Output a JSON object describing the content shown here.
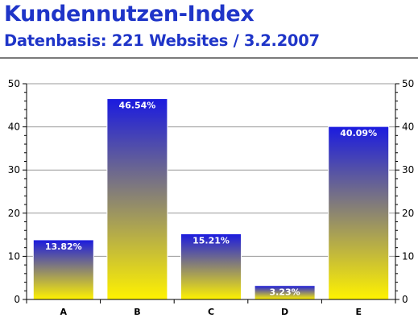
{
  "header": {
    "title": "Kundennutzen-Index",
    "subtitle": "Datenbasis: 221 Websites / 3.2.2007"
  },
  "chart_data": {
    "type": "bar",
    "categories": [
      "A",
      "B",
      "C",
      "D",
      "E"
    ],
    "values": [
      13.82,
      46.54,
      15.21,
      3.23,
      40.09
    ],
    "data_labels": [
      "13.82%",
      "46.54%",
      "15.21%",
      "3.23%",
      "40.09%"
    ],
    "ylim": [
      0,
      50
    ],
    "yticks": [
      0,
      10,
      20,
      30,
      40,
      50
    ],
    "y_axis_both_sides": true,
    "grid": "horizontal",
    "colors": {
      "bar_top": "#1a1ae0",
      "bar_bottom": "#fff200",
      "bar_border": "#ffffff",
      "grid": "#9a9a9a",
      "axis": "#000000"
    }
  }
}
